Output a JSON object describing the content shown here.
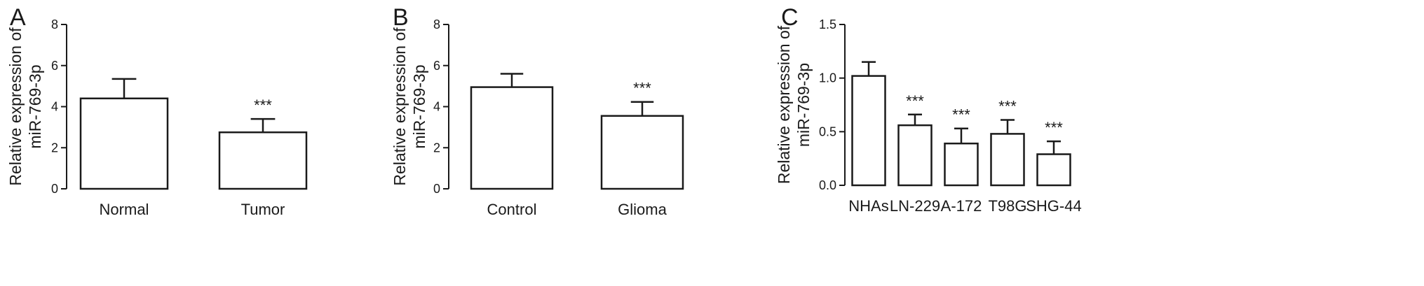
{
  "chart_data": [
    {
      "panel": "A",
      "type": "bar",
      "ylabel": [
        "Relative expression of",
        "miR-769-3p"
      ],
      "ylim": [
        0,
        8
      ],
      "yticks": [
        0,
        2,
        4,
        6,
        8
      ],
      "categories": [
        "Normal",
        "Tumor"
      ],
      "values": [
        4.4,
        2.75
      ],
      "errors": [
        0.95,
        0.65
      ],
      "significance": [
        "",
        "***"
      ]
    },
    {
      "panel": "B",
      "type": "bar",
      "ylabel": [
        "Relative expression of",
        "miR-769-3p"
      ],
      "ylim": [
        0,
        8
      ],
      "yticks": [
        0,
        2,
        4,
        6,
        8
      ],
      "categories": [
        "Control",
        "Glioma"
      ],
      "values": [
        4.95,
        3.55
      ],
      "errors": [
        0.65,
        0.68
      ],
      "significance": [
        "",
        "***"
      ]
    },
    {
      "panel": "C",
      "type": "bar",
      "ylabel": [
        "Relative expression of",
        "miR-769-3p"
      ],
      "ylim": [
        0,
        1.5
      ],
      "yticks": [
        "0.0",
        "0.5",
        "1.0",
        "1.5"
      ],
      "categories": [
        "NHAs",
        "LN-229",
        "A-172",
        "T98G",
        "SHG-44"
      ],
      "values": [
        1.02,
        0.56,
        0.39,
        0.48,
        0.29
      ],
      "errors": [
        0.13,
        0.1,
        0.14,
        0.13,
        0.12
      ],
      "significance": [
        "",
        "***",
        "***",
        "***",
        "***"
      ]
    }
  ]
}
